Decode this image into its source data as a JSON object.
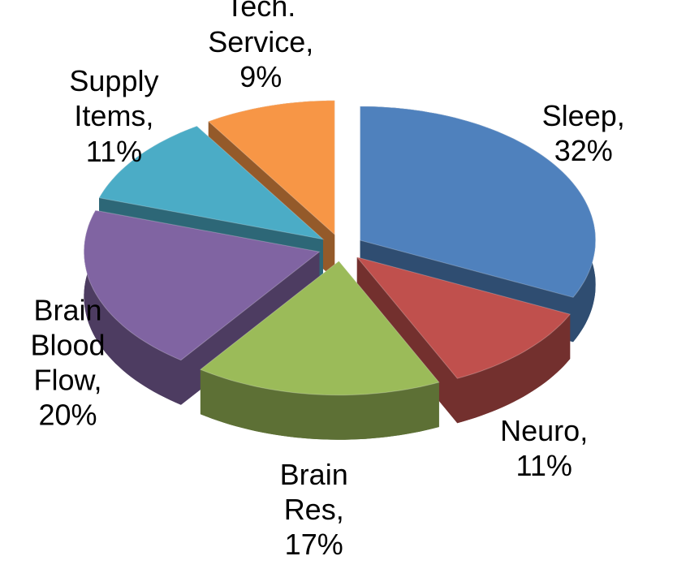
{
  "chart_data": {
    "type": "pie3d",
    "categories": [
      "Sleep,",
      "Neuro,",
      "Brain Res,",
      "Brain Blood Flow,",
      "Supply Items,",
      "Tech. Service,"
    ],
    "values": [
      32,
      11,
      17,
      20,
      11,
      9
    ],
    "value_labels": [
      "32%",
      "11%",
      "17%",
      "20%",
      "11%",
      "9%"
    ],
    "colors": [
      "#4f81bd",
      "#c0504d",
      "#9bbb59",
      "#8064a2",
      "#4bacc6",
      "#f79646"
    ]
  }
}
